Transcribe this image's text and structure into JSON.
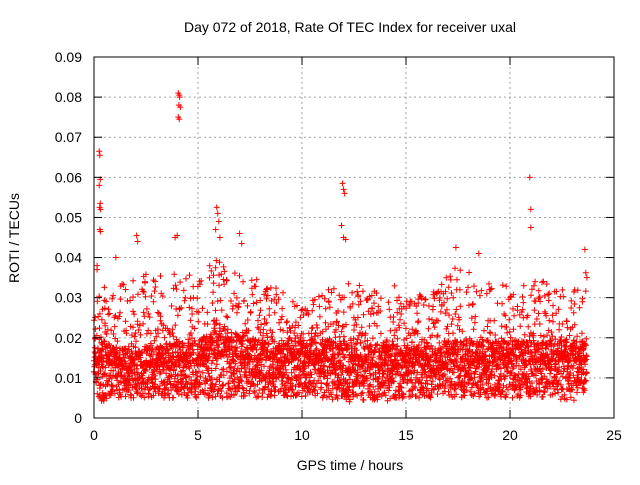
{
  "chart_data": {
    "type": "scatter",
    "title": "Day 072 of 2018, Rate Of TEC Index for receiver uxal",
    "xlabel": "GPS time / hours",
    "ylabel": "ROTI / TECUs",
    "xlim": [
      0,
      25
    ],
    "ylim": [
      0,
      0.09
    ],
    "xticks": [
      0,
      5,
      10,
      15,
      20,
      25
    ],
    "xtick_labels": [
      "0",
      "5",
      "10",
      "15",
      "20",
      "25"
    ],
    "yticks": [
      0,
      0.01,
      0.02,
      0.03,
      0.04,
      0.05,
      0.06,
      0.07,
      0.08,
      0.09
    ],
    "ytick_labels": [
      "0",
      "0.01",
      "0.02",
      "0.03",
      "0.04",
      "0.05",
      "0.06",
      "0.07",
      "0.08",
      "0.09"
    ],
    "grid": true,
    "marker": "+",
    "color": "#ff0000",
    "series": [
      {
        "name": "ROTI",
        "envelope": {
          "x": [
            0.0,
            0.3,
            1.0,
            2.0,
            3.0,
            4.0,
            5.0,
            6.0,
            7.0,
            8.0,
            9.0,
            10.0,
            11.0,
            12.0,
            13.0,
            14.0,
            15.0,
            16.0,
            17.0,
            18.0,
            19.0,
            20.0,
            21.0,
            22.0,
            23.0,
            23.7
          ],
          "min": [
            0.008,
            0.004,
            0.005,
            0.005,
            0.005,
            0.005,
            0.005,
            0.005,
            0.005,
            0.005,
            0.005,
            0.005,
            0.005,
            0.004,
            0.004,
            0.004,
            0.005,
            0.005,
            0.005,
            0.005,
            0.005,
            0.005,
            0.005,
            0.005,
            0.004,
            0.006
          ],
          "median": [
            0.013,
            0.014,
            0.013,
            0.013,
            0.013,
            0.014,
            0.014,
            0.016,
            0.015,
            0.014,
            0.014,
            0.014,
            0.014,
            0.014,
            0.013,
            0.013,
            0.013,
            0.013,
            0.014,
            0.014,
            0.014,
            0.014,
            0.014,
            0.014,
            0.014,
            0.014
          ],
          "max": [
            0.026,
            0.033,
            0.032,
            0.036,
            0.036,
            0.038,
            0.038,
            0.04,
            0.038,
            0.035,
            0.032,
            0.028,
            0.032,
            0.034,
            0.033,
            0.033,
            0.033,
            0.03,
            0.037,
            0.038,
            0.034,
            0.033,
            0.035,
            0.034,
            0.034,
            0.038
          ]
        },
        "outliers": [
          {
            "x": 0.15,
            "y": 0.038
          },
          {
            "x": 0.15,
            "y": 0.037
          },
          {
            "x": 0.25,
            "y": 0.0665
          },
          {
            "x": 0.28,
            "y": 0.0655
          },
          {
            "x": 0.3,
            "y": 0.0595
          },
          {
            "x": 0.25,
            "y": 0.058
          },
          {
            "x": 0.3,
            "y": 0.0535
          },
          {
            "x": 0.27,
            "y": 0.0525
          },
          {
            "x": 0.32,
            "y": 0.052
          },
          {
            "x": 0.28,
            "y": 0.047
          },
          {
            "x": 0.32,
            "y": 0.0465
          },
          {
            "x": 4.05,
            "y": 0.081
          },
          {
            "x": 4.1,
            "y": 0.0805
          },
          {
            "x": 4.12,
            "y": 0.08
          },
          {
            "x": 4.08,
            "y": 0.078
          },
          {
            "x": 4.15,
            "y": 0.0775
          },
          {
            "x": 4.05,
            "y": 0.075
          },
          {
            "x": 4.1,
            "y": 0.0745
          },
          {
            "x": 3.9,
            "y": 0.045
          },
          {
            "x": 4.0,
            "y": 0.0455
          },
          {
            "x": 5.9,
            "y": 0.0525
          },
          {
            "x": 5.95,
            "y": 0.051
          },
          {
            "x": 6.0,
            "y": 0.049
          },
          {
            "x": 5.85,
            "y": 0.047
          },
          {
            "x": 6.05,
            "y": 0.045
          },
          {
            "x": 7.0,
            "y": 0.046
          },
          {
            "x": 7.1,
            "y": 0.0435
          },
          {
            "x": 11.95,
            "y": 0.0585
          },
          {
            "x": 12.0,
            "y": 0.057
          },
          {
            "x": 12.05,
            "y": 0.056
          },
          {
            "x": 11.9,
            "y": 0.048
          },
          {
            "x": 12.0,
            "y": 0.045
          },
          {
            "x": 12.1,
            "y": 0.0445
          },
          {
            "x": 20.95,
            "y": 0.06
          },
          {
            "x": 21.0,
            "y": 0.052
          },
          {
            "x": 21.0,
            "y": 0.0475
          },
          {
            "x": 1.05,
            "y": 0.04
          },
          {
            "x": 2.05,
            "y": 0.0455
          },
          {
            "x": 2.1,
            "y": 0.044
          },
          {
            "x": 17.4,
            "y": 0.0425
          },
          {
            "x": 18.5,
            "y": 0.041
          },
          {
            "x": 23.6,
            "y": 0.042
          }
        ]
      }
    ]
  }
}
